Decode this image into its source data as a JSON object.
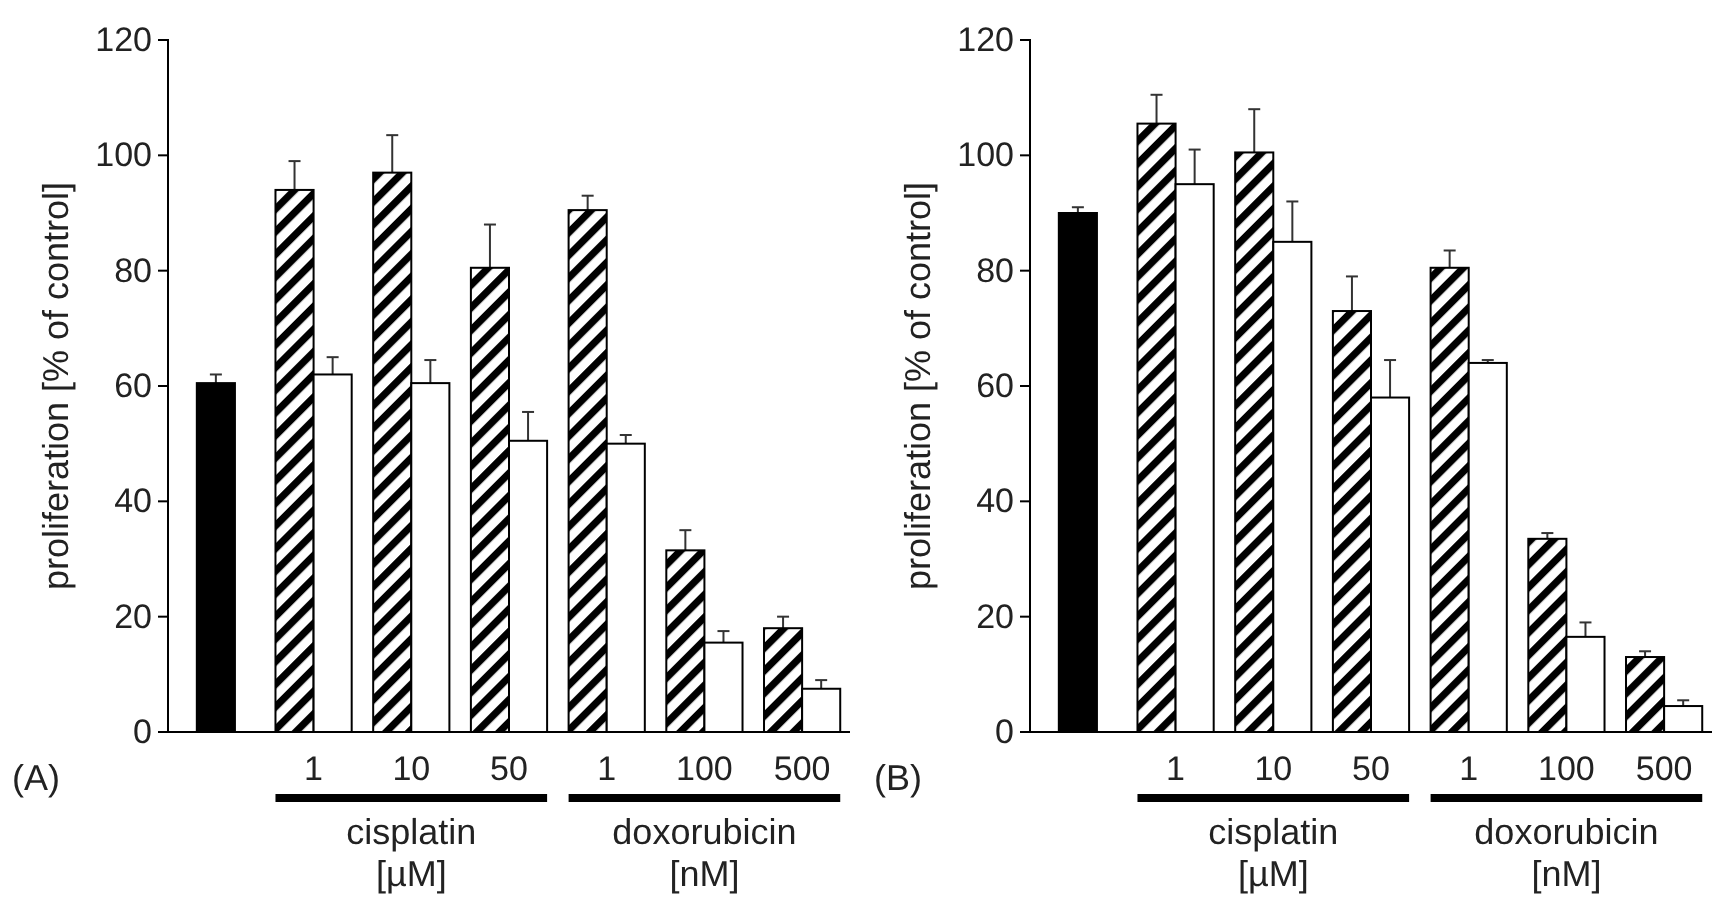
{
  "chart_data": [
    {
      "type": "bar",
      "ylabel": "proliferation [% of control]",
      "categories": [
        null,
        "1",
        "10",
        "50",
        "1",
        "100",
        "500"
      ],
      "ylim": [
        0,
        120
      ],
      "yticks": [
        0,
        20,
        40,
        60,
        80,
        100,
        120
      ],
      "annotations": [
        "(A)",
        "cisplatin [µM]",
        "doxorubicin [nM]"
      ],
      "series": [
        {
          "color": "#000000",
          "values": [
            60.5,
            null,
            null,
            null,
            null,
            null,
            null
          ],
          "errors": [
            [
              60.5,
              62
            ],
            null,
            null,
            null,
            null,
            null,
            null
          ]
        },
        {
          "color": "#000000",
          "values": [
            null,
            94,
            97,
            80.5,
            90.5,
            31.5,
            18
          ],
          "errors": [
            null,
            [
              94,
              99
            ],
            [
              97,
              103.5
            ],
            [
              80.5,
              88
            ],
            [
              90.5,
              93
            ],
            [
              31.5,
              35
            ],
            [
              18,
              20
            ]
          ]
        },
        {
          "color": "#ffffff",
          "values": [
            null,
            62,
            60.5,
            50.5,
            50,
            15.5,
            7.5
          ],
          "errors": [
            null,
            [
              62,
              65
            ],
            [
              60.5,
              64.5
            ],
            [
              50.5,
              55.5
            ],
            [
              50,
              51.5
            ],
            [
              15.5,
              17.5
            ],
            [
              7.5,
              9
            ]
          ]
        }
      ]
    },
    {
      "type": "bar",
      "ylabel": "proliferation [% of control]",
      "categories": [
        null,
        "1",
        "10",
        "50",
        "1",
        "100",
        "500"
      ],
      "ylim": [
        0,
        120
      ],
      "yticks": [
        0,
        20,
        40,
        60,
        80,
        100,
        120
      ],
      "annotations": [
        "(B)",
        "cisplatin [µM]",
        "doxorubicin [nM]"
      ],
      "series": [
        {
          "color": "#000000",
          "values": [
            90,
            null,
            null,
            null,
            null,
            null,
            null
          ],
          "errors": [
            [
              90,
              91
            ],
            null,
            null,
            null,
            null,
            null,
            null
          ]
        },
        {
          "color": "#000000",
          "values": [
            null,
            105.5,
            100.5,
            73,
            80.5,
            33.5,
            13
          ],
          "errors": [
            null,
            [
              105.5,
              110.5
            ],
            [
              100.5,
              108
            ],
            [
              73,
              79
            ],
            [
              80.5,
              83.5
            ],
            [
              33.5,
              34.5
            ],
            [
              13,
              14
            ]
          ]
        },
        {
          "color": "#ffffff",
          "values": [
            null,
            95,
            85,
            58,
            64,
            16.5,
            4.5
          ],
          "errors": [
            null,
            [
              95,
              101
            ],
            [
              85,
              92
            ],
            [
              58,
              64.5
            ],
            [
              64,
              64.5
            ],
            [
              16.5,
              19
            ],
            [
              4.5,
              5.5
            ]
          ]
        }
      ]
    }
  ]
}
